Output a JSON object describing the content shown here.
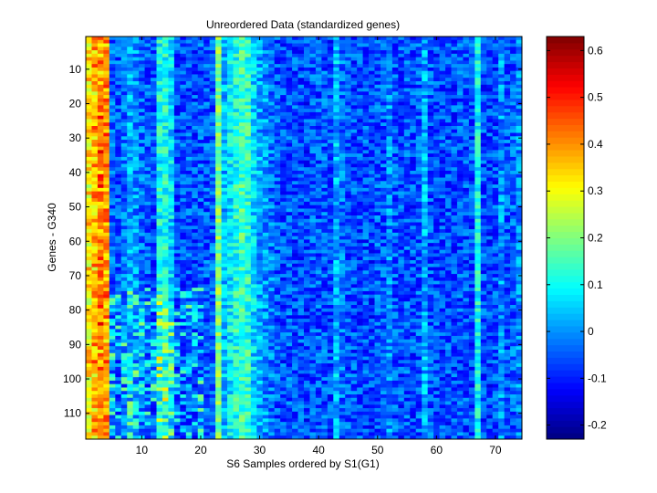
{
  "chart_data": {
    "type": "heatmap",
    "title": "Unreordered Data (standardized genes)",
    "xlabel": "S6 Samples ordered by S1(G1)",
    "ylabel": "Genes - G340",
    "n_cols": 74,
    "n_rows": 117,
    "xlim": [
      0.5,
      74.5
    ],
    "ylim": [
      0.5,
      117.5
    ],
    "x_ticks": [
      10,
      20,
      30,
      40,
      50,
      60,
      70
    ],
    "y_ticks": [
      10,
      20,
      30,
      40,
      50,
      60,
      70,
      80,
      90,
      100,
      110
    ],
    "colormap": "jet",
    "colorbar": {
      "min": -0.23,
      "max": 0.63,
      "ticks": [
        -0.2,
        -0.1,
        0,
        0.1,
        0.2,
        0.3,
        0.4,
        0.5,
        0.6
      ]
    },
    "column_profile": [
      0.33,
      0.37,
      0.42,
      0.4,
      -0.04,
      -0.05,
      -0.03,
      0.02,
      0.0,
      -0.03,
      -0.05,
      -0.06,
      0.1,
      0.11,
      0.06,
      -0.06,
      -0.06,
      -0.05,
      -0.06,
      -0.05,
      -0.05,
      -0.04,
      0.2,
      0.03,
      0.08,
      0.12,
      0.15,
      0.13,
      0.06,
      0.02,
      0.0,
      -0.02,
      -0.05,
      -0.06,
      -0.05,
      -0.06,
      -0.06,
      -0.07,
      -0.05,
      -0.05,
      -0.05,
      -0.06,
      0.03,
      -0.03,
      -0.05,
      -0.06,
      -0.06,
      -0.06,
      -0.07,
      -0.05,
      -0.05,
      0.0,
      -0.05,
      -0.06,
      -0.05,
      -0.06,
      -0.05,
      0.02,
      -0.05,
      -0.06,
      -0.06,
      -0.06,
      -0.06,
      -0.05,
      -0.06,
      -0.06,
      0.1,
      -0.06,
      -0.07,
      -0.06,
      0.0,
      -0.05,
      -0.04,
      -0.01
    ]
  }
}
